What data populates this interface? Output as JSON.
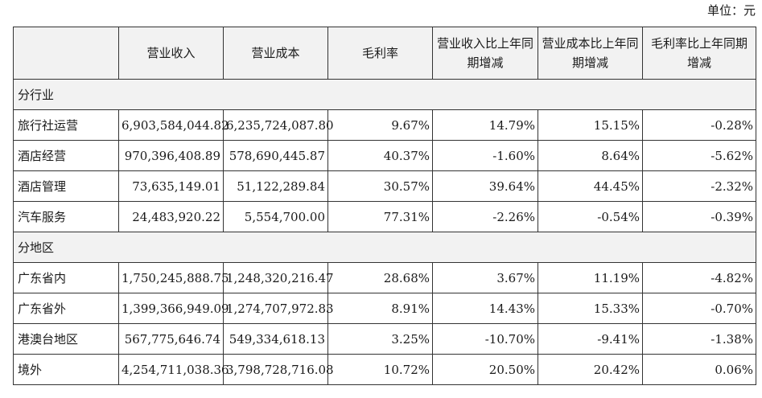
{
  "unit_label": "单位：元",
  "headers": [
    "",
    "营业收入",
    "营业成本",
    "毛利率",
    "营业收入比上年同期增减",
    "营业成本比上年同期增减",
    "毛利率比上年同期增减"
  ],
  "sections": [
    {
      "title": "分行业",
      "rows": [
        {
          "name": "旅行社运营",
          "revenue": "6,903,584,044.82",
          "cost": "6,235,724,087.80",
          "margin": "9.67%",
          "rev_chg": "14.79%",
          "cost_chg": "15.15%",
          "margin_chg": "-0.28%"
        },
        {
          "name": "酒店经营",
          "revenue": "970,396,408.89",
          "cost": "578,690,445.87",
          "margin": "40.37%",
          "rev_chg": "-1.60%",
          "cost_chg": "8.64%",
          "margin_chg": "-5.62%"
        },
        {
          "name": "酒店管理",
          "revenue": "73,635,149.01",
          "cost": "51,122,289.84",
          "margin": "30.57%",
          "rev_chg": "39.64%",
          "cost_chg": "44.45%",
          "margin_chg": "-2.32%"
        },
        {
          "name": "汽车服务",
          "revenue": "24,483,920.22",
          "cost": "5,554,700.00",
          "margin": "77.31%",
          "rev_chg": "-2.26%",
          "cost_chg": "-0.54%",
          "margin_chg": "-0.39%"
        }
      ]
    },
    {
      "title": "分地区",
      "rows": [
        {
          "name": "广东省内",
          "revenue": "1,750,245,888.75",
          "cost": "1,248,320,216.47",
          "margin": "28.68%",
          "rev_chg": "3.67%",
          "cost_chg": "11.19%",
          "margin_chg": "-4.82%"
        },
        {
          "name": "广东省外",
          "revenue": "1,399,366,949.09",
          "cost": "1,274,707,972.83",
          "margin": "8.91%",
          "rev_chg": "14.43%",
          "cost_chg": "15.33%",
          "margin_chg": "-0.70%"
        },
        {
          "name": "港澳台地区",
          "revenue": "567,775,646.74",
          "cost": "549,334,618.13",
          "margin": "3.25%",
          "rev_chg": "-10.70%",
          "cost_chg": "-9.41%",
          "margin_chg": "-1.38%"
        },
        {
          "name": "境外",
          "revenue": "4,254,711,038.36",
          "cost": "3,798,728,716.08",
          "margin": "10.72%",
          "rev_chg": "20.50%",
          "cost_chg": "20.42%",
          "margin_chg": "0.06%"
        }
      ]
    }
  ]
}
